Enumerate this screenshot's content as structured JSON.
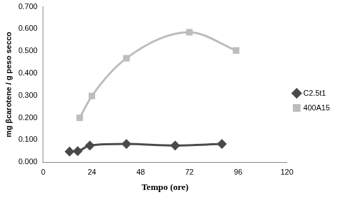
{
  "chart_data": {
    "type": "line",
    "x_label": "Tempo (ore)",
    "y_label": "mg βcarotene / g peso secco",
    "xlim": [
      0,
      120
    ],
    "xticks": [
      0,
      24,
      48,
      72,
      96,
      120
    ],
    "ylim": [
      0,
      0.7
    ],
    "yticks": [
      {
        "value": 0,
        "label": "0.000"
      },
      {
        "value": 0.1,
        "label": "0.100"
      },
      {
        "value": 0.2,
        "label": "0.200"
      },
      {
        "value": 0.3,
        "label": "0.300"
      },
      {
        "value": 0.4,
        "label": "0.400"
      },
      {
        "value": 0.5,
        "label": "0.500"
      },
      {
        "value": 0.6,
        "label": "0.600"
      },
      {
        "value": 0.7,
        "label": "0.700"
      }
    ],
    "grid": false,
    "legend": "right",
    "series": [
      {
        "name": "C2.5t1",
        "color": "#4a4a4a",
        "marker": "diamond",
        "line_style": "solid",
        "x": [
          13,
          17,
          23,
          41,
          65,
          88
        ],
        "values": [
          0.048,
          0.05,
          0.075,
          0.082,
          0.075,
          0.082
        ]
      },
      {
        "name": "400A15",
        "color": "#bdbdbd",
        "marker": "square",
        "line_style": "solid",
        "x": [
          18,
          24,
          41,
          72,
          95
        ],
        "values": [
          0.2,
          0.298,
          0.468,
          0.585,
          0.503
        ]
      }
    ]
  }
}
